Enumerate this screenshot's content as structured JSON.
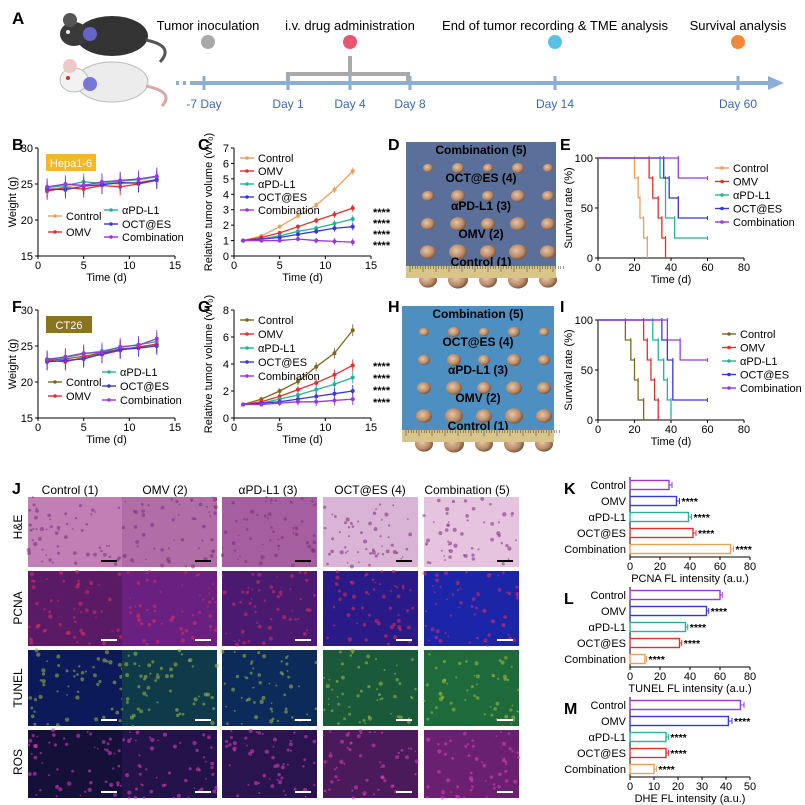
{
  "timeline": {
    "label": "A",
    "events": [
      "Tumor inoculation",
      "i.v. drug administration",
      "End of tumor recording & TME analysis",
      "Survival analysis"
    ],
    "event_colors": [
      "#a9a9a9",
      "#e8556f",
      "#5bc0e6",
      "#ef8a3c"
    ],
    "days": [
      "-7 Day",
      "Day 1",
      "Day 4",
      "Day 8",
      "Day 14",
      "Day 60"
    ]
  },
  "groups": [
    "Control",
    "OMV",
    "αPD-L1",
    "OCT@ES",
    "Combination"
  ],
  "colors": {
    "growth": [
      "#e8a060",
      "#e03030",
      "#2ab09a",
      "#3838d8",
      "#9a38d8"
    ],
    "ct26_control": "#7a6a20",
    "bars": [
      "#9a38d8",
      "#3838d8",
      "#2ab09a",
      "#e03030",
      "#e8a060"
    ]
  },
  "photo_labels": [
    "Combination (5)",
    "OCT@ES (4)",
    "αPD-L1 (3)",
    "OMV (2)",
    "Control (1)"
  ],
  "histology": {
    "label": "J",
    "columns": [
      "Control (1)",
      "OMV (2)",
      "αPD-L1 (3)",
      "OCT@ES (4)",
      "Combination (5)"
    ],
    "rows": [
      "H&E",
      "PCNA",
      "TUNEL",
      "ROS"
    ]
  },
  "sig": "****",
  "chart_data": [
    {
      "panel": "B",
      "type": "line",
      "tag": "Hepa1-6",
      "xlabel": "Time (d)",
      "ylabel": "Weight (g)",
      "xlim": [
        0,
        15
      ],
      "ylim": [
        15,
        30
      ],
      "xticks": [
        0,
        5,
        10,
        15
      ],
      "yticks": [
        15,
        20,
        25,
        30
      ],
      "x": [
        1,
        3,
        5,
        7,
        9,
        11,
        13
      ],
      "series": [
        {
          "name": "Control",
          "values": [
            24.2,
            24.6,
            24.9,
            25.1,
            25.0,
            25.3,
            25.6
          ]
        },
        {
          "name": "OMV",
          "values": [
            24.0,
            24.5,
            24.3,
            24.8,
            24.6,
            25.0,
            25.5
          ]
        },
        {
          "name": "αPD-L1",
          "values": [
            24.5,
            24.8,
            25.3,
            25.1,
            25.4,
            25.6,
            26.0
          ]
        },
        {
          "name": "OCT@ES",
          "values": [
            24.3,
            24.2,
            24.7,
            24.9,
            25.2,
            25.1,
            25.6
          ]
        },
        {
          "name": "Combination",
          "values": [
            24.6,
            25.0,
            24.8,
            25.3,
            25.5,
            25.7,
            26.1
          ]
        }
      ]
    },
    {
      "panel": "C",
      "type": "line",
      "xlabel": "Time (d)",
      "ylabel": "Relative tumor volume (v/v₀)",
      "xlim": [
        0,
        15
      ],
      "ylim": [
        0,
        7
      ],
      "xticks": [
        0,
        5,
        10,
        15
      ],
      "yticks": [
        0,
        1,
        2,
        3,
        4,
        5,
        6,
        7
      ],
      "x": [
        1,
        3,
        5,
        7,
        9,
        11,
        13
      ],
      "series": [
        {
          "name": "Control",
          "values": [
            1.0,
            1.3,
            1.9,
            2.6,
            3.3,
            4.3,
            5.5
          ]
        },
        {
          "name": "OMV",
          "values": [
            1.0,
            1.2,
            1.5,
            1.9,
            2.3,
            2.7,
            3.1
          ]
        },
        {
          "name": "αPD-L1",
          "values": [
            1.0,
            1.1,
            1.3,
            1.6,
            1.8,
            2.1,
            2.4
          ]
        },
        {
          "name": "OCT@ES",
          "values": [
            1.0,
            1.1,
            1.2,
            1.4,
            1.6,
            1.8,
            1.9
          ]
        },
        {
          "name": "Combination",
          "values": [
            1.0,
            1.0,
            1.0,
            1.1,
            1.0,
            0.95,
            0.9
          ]
        }
      ]
    },
    {
      "panel": "E",
      "type": "line",
      "xlabel": "Time (d)",
      "ylabel": "Survival rate (%)",
      "xlim": [
        0,
        80
      ],
      "ylim": [
        0,
        100
      ],
      "xticks": [
        0,
        20,
        40,
        60,
        80
      ],
      "yticks": [
        0,
        50,
        100
      ],
      "series": [
        {
          "name": "Control",
          "points": [
            [
              0,
              100
            ],
            [
              20,
              100
            ],
            [
              20,
              80
            ],
            [
              22,
              80
            ],
            [
              22,
              60
            ],
            [
              23,
              60
            ],
            [
              23,
              40
            ],
            [
              25,
              40
            ],
            [
              25,
              20
            ],
            [
              27,
              20
            ],
            [
              27,
              0
            ]
          ]
        },
        {
          "name": "OMV",
          "points": [
            [
              0,
              100
            ],
            [
              28,
              100
            ],
            [
              28,
              80
            ],
            [
              30,
              80
            ],
            [
              30,
              60
            ],
            [
              33,
              60
            ],
            [
              33,
              40
            ],
            [
              35,
              40
            ],
            [
              35,
              20
            ],
            [
              37,
              20
            ],
            [
              37,
              0
            ]
          ]
        },
        {
          "name": "αPD-L1",
          "points": [
            [
              0,
              100
            ],
            [
              34,
              100
            ],
            [
              34,
              80
            ],
            [
              37,
              80
            ],
            [
              37,
              40
            ],
            [
              42,
              40
            ],
            [
              42,
              20
            ],
            [
              60,
              20
            ]
          ]
        },
        {
          "name": "OCT@ES",
          "points": [
            [
              0,
              100
            ],
            [
              36,
              100
            ],
            [
              36,
              80
            ],
            [
              39,
              80
            ],
            [
              39,
              60
            ],
            [
              44,
              60
            ],
            [
              44,
              40
            ],
            [
              60,
              40
            ]
          ]
        },
        {
          "name": "Combination",
          "points": [
            [
              0,
              100
            ],
            [
              44,
              100
            ],
            [
              44,
              80
            ],
            [
              60,
              80
            ]
          ]
        }
      ]
    },
    {
      "panel": "F",
      "type": "line",
      "tag": "CT26",
      "xlabel": "Time (d)",
      "ylabel": "Weight (g)",
      "xlim": [
        0,
        15
      ],
      "ylim": [
        15,
        30
      ],
      "xticks": [
        0,
        5,
        10,
        15
      ],
      "yticks": [
        15,
        20,
        25,
        30
      ],
      "x": [
        1,
        3,
        5,
        7,
        9,
        11,
        13
      ],
      "series": [
        {
          "name": "Control",
          "values": [
            23.0,
            23.2,
            23.6,
            24.0,
            24.6,
            24.8,
            25.3
          ]
        },
        {
          "name": "OMV",
          "values": [
            23.0,
            22.8,
            23.4,
            23.8,
            24.4,
            24.9,
            25.2
          ]
        },
        {
          "name": "αPD-L1",
          "values": [
            23.2,
            23.4,
            23.9,
            24.3,
            24.8,
            25.2,
            25.6
          ]
        },
        {
          "name": "OCT@ES",
          "values": [
            22.8,
            23.0,
            23.2,
            23.9,
            24.5,
            24.7,
            25.0
          ]
        },
        {
          "name": "Combination",
          "values": [
            23.1,
            23.5,
            24.0,
            24.1,
            24.9,
            25.1,
            26.0
          ]
        }
      ]
    },
    {
      "panel": "G",
      "type": "line",
      "xlabel": "Time (d)",
      "ylabel": "Relative tumor volume (v/v₀)",
      "xlim": [
        0,
        15
      ],
      "ylim": [
        0,
        8
      ],
      "xticks": [
        0,
        5,
        10,
        15
      ],
      "yticks": [
        0,
        2,
        4,
        6,
        8
      ],
      "x": [
        1,
        3,
        5,
        7,
        9,
        11,
        13
      ],
      "series": [
        {
          "name": "Control",
          "values": [
            1.0,
            1.4,
            2.0,
            2.7,
            3.8,
            4.8,
            6.5
          ]
        },
        {
          "name": "OMV",
          "values": [
            1.0,
            1.2,
            1.6,
            2.1,
            2.6,
            3.2,
            3.9
          ]
        },
        {
          "name": "αPD-L1",
          "values": [
            1.0,
            1.1,
            1.4,
            1.7,
            2.1,
            2.5,
            3.0
          ]
        },
        {
          "name": "OCT@ES",
          "values": [
            1.0,
            1.1,
            1.2,
            1.4,
            1.6,
            1.8,
            2.0
          ]
        },
        {
          "name": "Combination",
          "values": [
            1.0,
            1.0,
            1.1,
            1.2,
            1.2,
            1.3,
            1.4
          ]
        }
      ]
    },
    {
      "panel": "I",
      "type": "line",
      "xlabel": "Time (d)",
      "ylabel": "Survival rate (%)",
      "xlim": [
        0,
        80
      ],
      "ylim": [
        0,
        100
      ],
      "xticks": [
        0,
        20,
        40,
        60,
        80
      ],
      "yticks": [
        0,
        50,
        100
      ],
      "series": [
        {
          "name": "Control",
          "points": [
            [
              0,
              100
            ],
            [
              15,
              100
            ],
            [
              15,
              80
            ],
            [
              18,
              80
            ],
            [
              18,
              60
            ],
            [
              20,
              60
            ],
            [
              20,
              40
            ],
            [
              22,
              40
            ],
            [
              22,
              20
            ],
            [
              25,
              20
            ],
            [
              25,
              0
            ]
          ]
        },
        {
          "name": "OMV",
          "points": [
            [
              0,
              100
            ],
            [
              25,
              100
            ],
            [
              25,
              80
            ],
            [
              27,
              80
            ],
            [
              27,
              60
            ],
            [
              29,
              60
            ],
            [
              29,
              40
            ],
            [
              31,
              40
            ],
            [
              31,
              20
            ],
            [
              33,
              20
            ],
            [
              33,
              0
            ]
          ]
        },
        {
          "name": "αPD-L1",
          "points": [
            [
              0,
              100
            ],
            [
              30,
              100
            ],
            [
              30,
              80
            ],
            [
              33,
              80
            ],
            [
              33,
              60
            ],
            [
              36,
              60
            ],
            [
              36,
              40
            ],
            [
              38,
              40
            ],
            [
              38,
              20
            ],
            [
              40,
              20
            ],
            [
              40,
              0
            ]
          ]
        },
        {
          "name": "OCT@ES",
          "points": [
            [
              0,
              100
            ],
            [
              35,
              100
            ],
            [
              35,
              80
            ],
            [
              38,
              80
            ],
            [
              38,
              60
            ],
            [
              41,
              60
            ],
            [
              41,
              20
            ],
            [
              60,
              20
            ]
          ]
        },
        {
          "name": "Combination",
          "points": [
            [
              0,
              100
            ],
            [
              38,
              100
            ],
            [
              38,
              80
            ],
            [
              45,
              80
            ],
            [
              45,
              60
            ],
            [
              60,
              60
            ]
          ]
        }
      ]
    },
    {
      "panel": "K",
      "type": "bar",
      "orientation": "horizontal",
      "xlabel": "PCNA FL intensity (a.u.)",
      "xlim": [
        0,
        80
      ],
      "xticks": [
        0,
        20,
        40,
        60,
        80
      ],
      "categories": [
        "Control",
        "OMV",
        "αPD-L1",
        "OCT@ES",
        "Combination"
      ],
      "values": [
        26,
        31,
        39,
        42,
        67
      ],
      "errors": [
        2,
        2,
        2,
        2,
        2
      ]
    },
    {
      "panel": "L",
      "type": "bar",
      "orientation": "horizontal",
      "xlabel": "TUNEL FL intensity (a.u.)",
      "xlim": [
        0,
        80
      ],
      "xticks": [
        0,
        20,
        40,
        60,
        80
      ],
      "categories": [
        "Control",
        "OMV",
        "αPD-L1",
        "OCT@ES",
        "Combination"
      ],
      "values": [
        60,
        51,
        37,
        33,
        10
      ],
      "errors": [
        1.5,
        1.5,
        1.5,
        1.5,
        1
      ]
    },
    {
      "panel": "M",
      "type": "bar",
      "orientation": "horizontal",
      "xlabel": "DHE FL intensity (a.u.)",
      "xlim": [
        0,
        50
      ],
      "xticks": [
        0,
        10,
        20,
        30,
        40,
        50
      ],
      "categories": [
        "Control",
        "OMV",
        "αPD-L1",
        "OCT@ES",
        "Combination"
      ],
      "values": [
        46,
        41,
        15,
        15,
        10
      ],
      "errors": [
        1.5,
        1.5,
        1,
        1,
        1
      ]
    }
  ]
}
